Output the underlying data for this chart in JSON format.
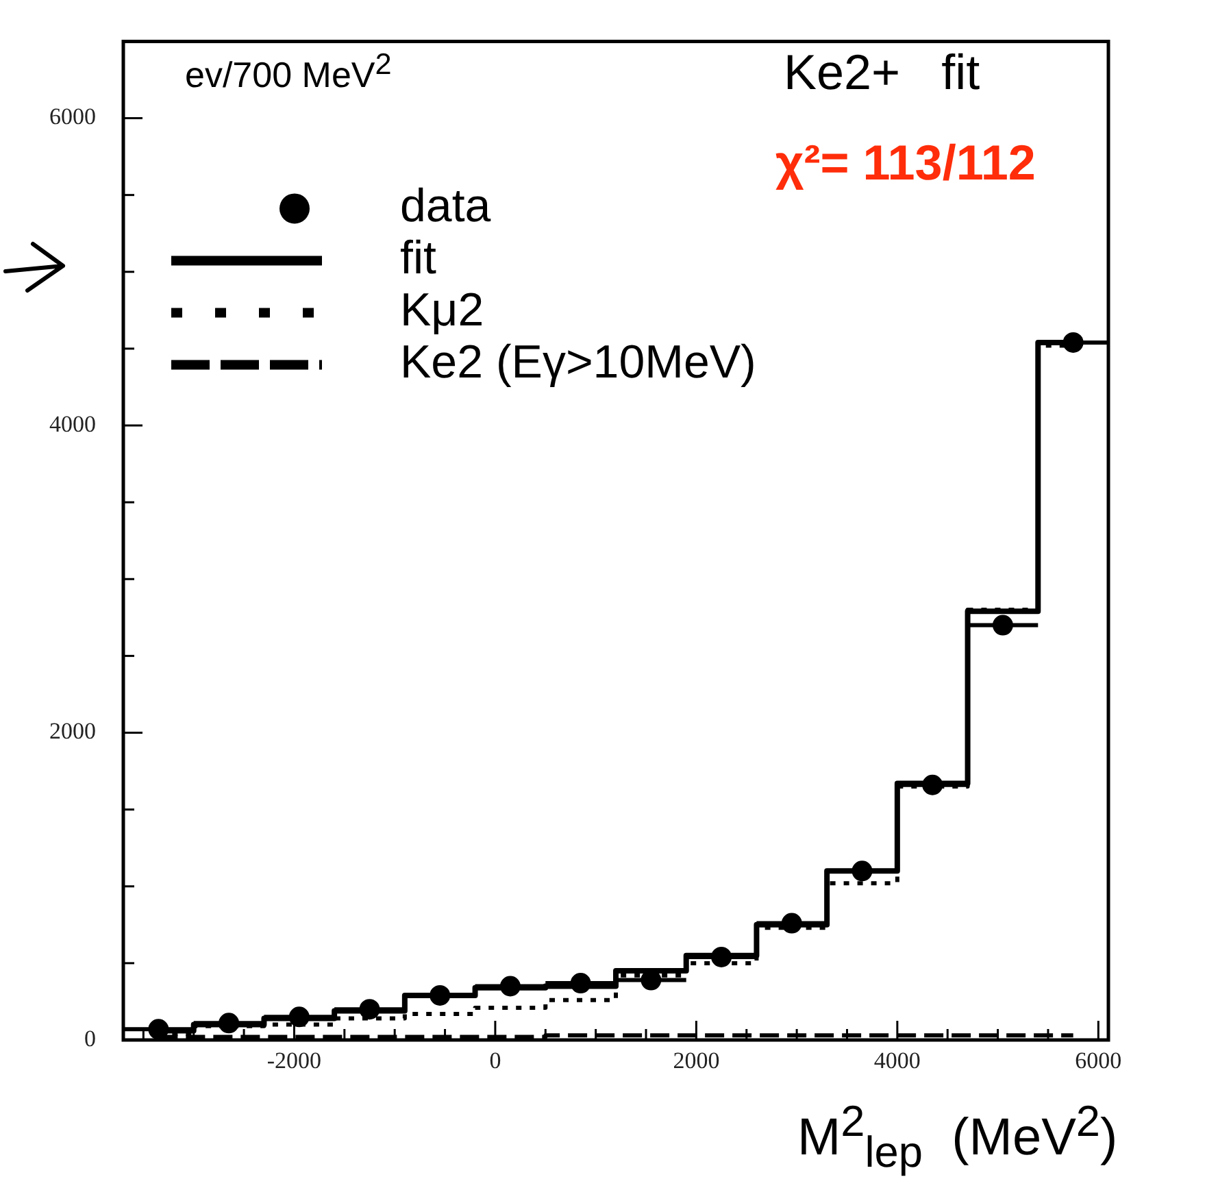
{
  "chart_data": {
    "type": "step",
    "title": "Ke2+   fit",
    "subtitle": "χ²= 113/112",
    "ylabel": "ev/700 MeV$^{2}$",
    "xlabel": "M$^{2}$$_{lep}$  (MeV$^{2}$)",
    "x": [
      -3350,
      -2650,
      -1950,
      -1250,
      -550,
      150,
      850,
      1550,
      2250,
      2950,
      3650,
      4350,
      5050,
      5750
    ],
    "series": [
      {
        "name": "data",
        "type": "scatter",
        "color": "#000000",
        "marker": "circle",
        "values": [
          70,
          110,
          150,
          200,
          290,
          350,
          370,
          390,
          540,
          760,
          1100,
          1660,
          2700,
          4540
        ],
        "xerrors": [
          350,
          350,
          350,
          350,
          350,
          350,
          350,
          350,
          350,
          350,
          350,
          350,
          350,
          350
        ]
      },
      {
        "name": "fit",
        "color": "#000000",
        "line_style": "solid",
        "values": [
          60,
          100,
          140,
          190,
          290,
          340,
          350,
          450,
          550,
          750,
          1100,
          1670,
          2790,
          4540
        ]
      },
      {
        "name": "Kμ2",
        "color": "#000000",
        "line_style": "dotted",
        "values": [
          40,
          90,
          100,
          140,
          170,
          210,
          260,
          420,
          500,
          730,
          1020,
          1650,
          2800,
          4520
        ]
      },
      {
        "name": "Ke2 (Eγ>10MeV)",
        "color": "#000000",
        "line_style": "dashed",
        "values": [
          20,
          20,
          20,
          20,
          20,
          20,
          30,
          30,
          30,
          30,
          30,
          30,
          30,
          30
        ]
      }
    ],
    "xlim": [
      -3700,
      6100
    ],
    "xticks": [
      {
        "value": -3500,
        "label": null
      },
      {
        "value": -3000,
        "label": null
      },
      {
        "value": -2500,
        "label": null
      },
      -2000,
      {
        "value": -1500,
        "label": null
      },
      {
        "value": -1000,
        "label": null
      },
      {
        "value": -500,
        "label": null
      },
      0,
      {
        "value": 500,
        "label": null
      },
      {
        "value": 1000,
        "label": null
      },
      {
        "value": 1500,
        "label": null
      },
      2000,
      {
        "value": 2500,
        "label": null
      },
      {
        "value": 3000,
        "label": null
      },
      {
        "value": 3500,
        "label": null
      },
      4000,
      {
        "value": 4500,
        "label": null
      },
      {
        "value": 5000,
        "label": null
      },
      {
        "value": 5500,
        "label": null
      },
      6000
    ],
    "ylim": [
      0,
      6500
    ],
    "yticks": [
      0,
      {
        "value": 500,
        "label": null
      },
      {
        "value": 1000,
        "label": null
      },
      {
        "value": 1500,
        "label": null
      },
      2000,
      {
        "value": 2500,
        "label": null
      },
      {
        "value": 3000,
        "label": null
      },
      {
        "value": 3500,
        "label": null
      },
      4000,
      {
        "value": 4500,
        "label": null
      },
      {
        "value": 5000,
        "label": null
      },
      {
        "value": 5500,
        "label": null
      },
      6000
    ],
    "grid": false,
    "legend": "top left"
  }
}
